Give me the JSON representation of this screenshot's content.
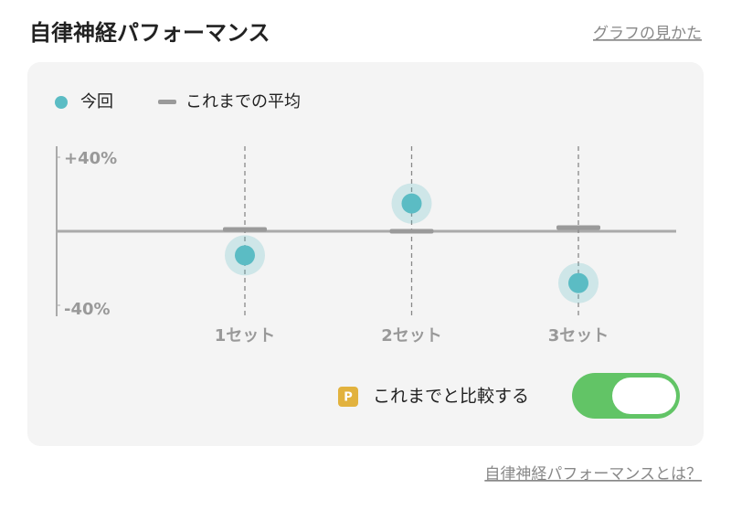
{
  "header": {
    "title": "自律神経パフォーマンス",
    "link": "グラフの見かた"
  },
  "chart_data": {
    "type": "dot",
    "categories": [
      "1セット",
      "2セット",
      "3セット"
    ],
    "series": [
      {
        "name": "今回",
        "color": "#5bbcc4",
        "values": [
          -13,
          15,
          -28
        ]
      },
      {
        "name": "これまでの平均",
        "color": "#9a9a9a",
        "values": [
          1,
          0,
          2
        ]
      }
    ],
    "ylim": [
      -40,
      40
    ],
    "yticks": [
      {
        "value": 40,
        "label": "+40%"
      },
      {
        "value": -40,
        "label": "-40%"
      }
    ]
  },
  "compare": {
    "badge": "P",
    "label": "これまでと比較する"
  },
  "footer": {
    "link": "自律神経パフォーマンスとは？"
  }
}
